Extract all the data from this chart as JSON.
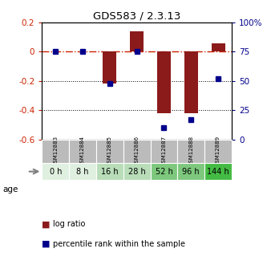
{
  "title": "GDS583 / 2.3.13",
  "samples": [
    "GSM12883",
    "GSM12884",
    "GSM12885",
    "GSM12886",
    "GSM12887",
    "GSM12888",
    "GSM12889"
  ],
  "ages": [
    "0 h",
    "8 h",
    "16 h",
    "28 h",
    "52 h",
    "96 h",
    "144 h"
  ],
  "log_ratio": [
    0.0,
    0.0,
    -0.22,
    0.135,
    -0.42,
    -0.42,
    0.055
  ],
  "percentile_rank": [
    75,
    75,
    48,
    75,
    10,
    17,
    52
  ],
  "ylim_left": [
    -0.6,
    0.2
  ],
  "ylim_right": [
    0,
    100
  ],
  "yticks_left": [
    -0.6,
    -0.4,
    -0.2,
    0.0,
    0.2
  ],
  "yticks_right": [
    0,
    25,
    50,
    75,
    100
  ],
  "ytick_labels_right": [
    "0",
    "25",
    "50",
    "75",
    "100%"
  ],
  "bar_color": "#8b1a1a",
  "dot_color": "#00008b",
  "ref_line_color": "#cc2200",
  "grid_color": "black",
  "age_colors": [
    "#e0f0e0",
    "#e0f0e0",
    "#b8ddb8",
    "#b8ddb8",
    "#7dc87d",
    "#7dc87d",
    "#44bb44"
  ],
  "sample_bg_color": "#bbbbbb",
  "legend_bar_color": "#8b1a1a",
  "legend_dot_color": "#00008b"
}
